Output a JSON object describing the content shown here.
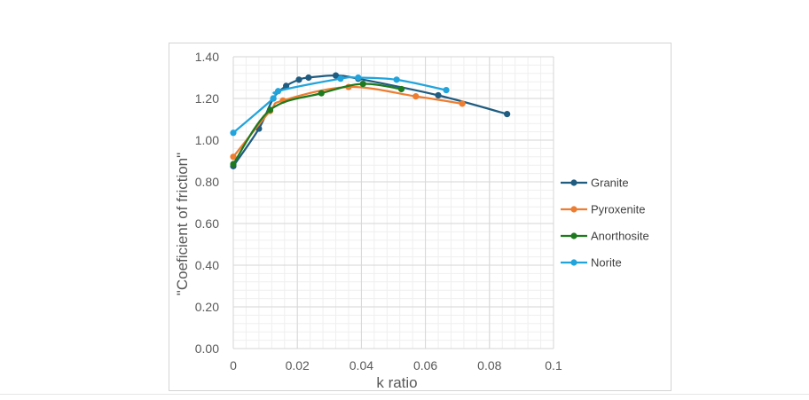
{
  "chart_data": {
    "type": "scatter",
    "title": "",
    "xlabel": "k ratio",
    "ylabel": "\"Coeficient of friction\"",
    "xlim": [
      0,
      0.1
    ],
    "ylim": [
      0,
      1.4
    ],
    "x_ticks": [
      0,
      0.02,
      0.04,
      0.06,
      0.08,
      0.1
    ],
    "x_tick_labels": [
      "0",
      "0.02",
      "0.04",
      "0.06",
      "0.08",
      "0.1"
    ],
    "y_ticks": [
      0,
      0.2,
      0.4,
      0.6,
      0.8,
      1.0,
      1.2,
      1.4
    ],
    "y_tick_labels": [
      "0.00",
      "0.20",
      "0.40",
      "0.60",
      "0.80",
      "1.00",
      "1.20",
      "1.40"
    ],
    "grid": true,
    "minor_grid": true,
    "smoothed_lines": true,
    "legend_position": "right",
    "series": [
      {
        "name": "Granite",
        "color": "#1f5c80",
        "x": [
          0,
          0.008,
          0.0125,
          0.0165,
          0.0205,
          0.0235,
          0.032,
          0.039,
          0.064,
          0.0855
        ],
        "y": [
          0.875,
          1.055,
          1.2,
          1.26,
          1.29,
          1.3,
          1.31,
          1.295,
          1.215,
          1.125
        ]
      },
      {
        "name": "Pyroxenite",
        "color": "#ed7d31",
        "x": [
          0,
          0.0115,
          0.0155,
          0.036,
          0.057,
          0.0715
        ],
        "y": [
          0.92,
          1.14,
          1.19,
          1.255,
          1.21,
          1.175
        ]
      },
      {
        "name": "Anorthosite",
        "color": "#1e7a1e",
        "x": [
          0,
          0.0115,
          0.0275,
          0.0405,
          0.0525
        ],
        "y": [
          0.885,
          1.145,
          1.225,
          1.27,
          1.245
        ]
      },
      {
        "name": "Norite",
        "color": "#21a4dc",
        "x": [
          0,
          0.0125,
          0.014,
          0.0335,
          0.039,
          0.051,
          0.0665
        ],
        "y": [
          1.035,
          1.2,
          1.235,
          1.295,
          1.3,
          1.29,
          1.24
        ]
      }
    ]
  }
}
